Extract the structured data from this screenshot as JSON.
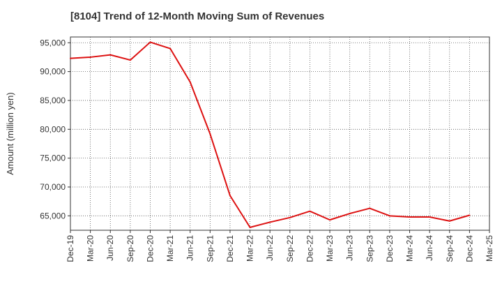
{
  "chart_data": {
    "type": "line",
    "title": "[8104]  Trend of 12-Month Moving Sum of Revenues",
    "xlabel": "",
    "ylabel": "Amount (million yen)",
    "ylim": [
      62500,
      96000
    ],
    "yticks": [
      95000,
      90000,
      85000,
      80000,
      75000,
      70000,
      65000
    ],
    "ytick_labels": [
      "95,000",
      "90,000",
      "85,000",
      "80,000",
      "75,000",
      "70,000",
      "65,000"
    ],
    "x_tick_labels": [
      "Dec-19",
      "Mar-20",
      "Jun-20",
      "Sep-20",
      "Dec-20",
      "Mar-21",
      "Jun-21",
      "Sep-21",
      "Dec-21",
      "Mar-22",
      "Jun-22",
      "Sep-22",
      "Dec-22",
      "Mar-23",
      "Jun-23",
      "Sep-23",
      "Dec-23",
      "Mar-24",
      "Jun-24",
      "Sep-24",
      "Dec-24",
      "Mar-25"
    ],
    "grid": true,
    "series": [
      {
        "color": "#dd1111",
        "x": [
          "Dec-19",
          "Mar-20",
          "Jun-20",
          "Sep-20",
          "Dec-20",
          "Mar-21",
          "Jun-21",
          "Sep-21",
          "Dec-21",
          "Mar-22",
          "Jun-22",
          "Sep-22",
          "Dec-22",
          "Mar-23",
          "Jun-23",
          "Sep-23",
          "Dec-23",
          "Mar-24",
          "Jun-24",
          "Sep-24",
          "Dec-24"
        ],
        "values": [
          92300,
          92500,
          92900,
          92000,
          95100,
          94000,
          88200,
          79200,
          68500,
          63000,
          63900,
          64700,
          65800,
          64300,
          65400,
          66300,
          65000,
          64800,
          64800,
          64100,
          65100
        ]
      }
    ]
  }
}
